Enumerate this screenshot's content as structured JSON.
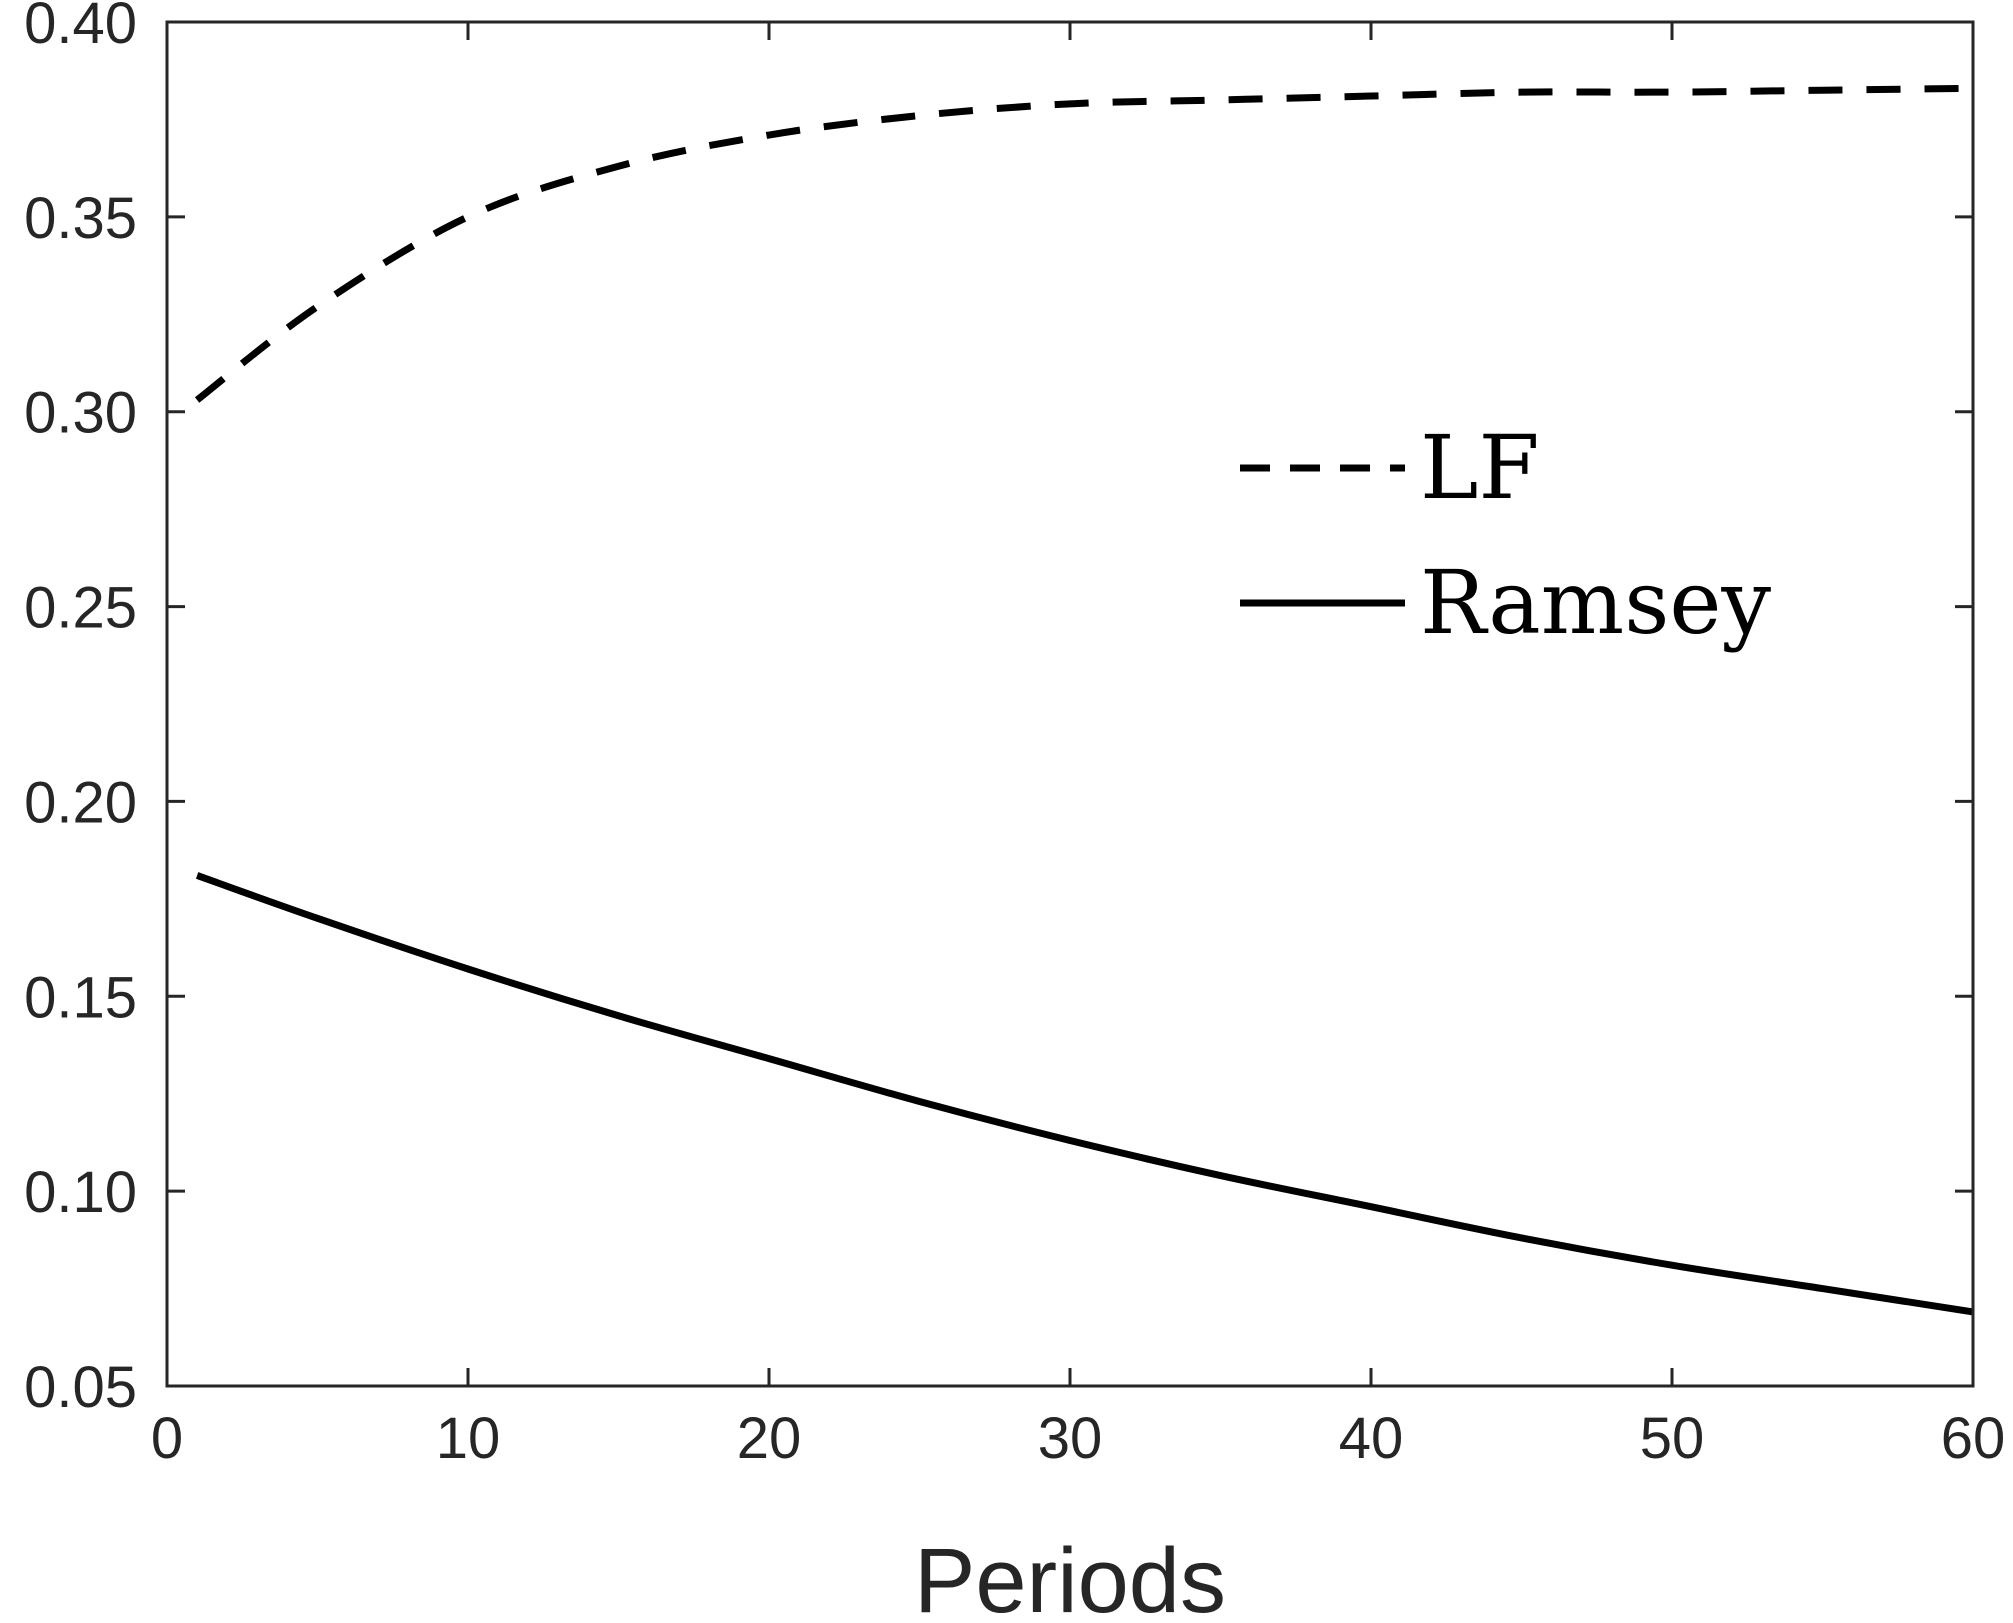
{
  "chart_data": {
    "type": "line",
    "title": "",
    "xlabel": "Periods",
    "ylabel": "",
    "xlim": [
      0,
      60
    ],
    "ylim": [
      0.05,
      0.4
    ],
    "xticks": [
      "0",
      "10",
      "20",
      "30",
      "40",
      "50",
      "60"
    ],
    "yticks": [
      "0.05",
      "0.10",
      "0.15",
      "0.20",
      "0.25",
      "0.30",
      "0.35",
      "0.40"
    ],
    "grid": false,
    "legend_position": "center-right",
    "x": [
      1,
      5,
      10,
      15,
      20,
      25,
      30,
      35,
      40,
      45,
      50,
      55,
      60
    ],
    "series": [
      {
        "name": "LF",
        "style": "dashed",
        "color": "#000000",
        "values": [
          0.303,
          0.327,
          0.35,
          0.363,
          0.371,
          0.376,
          0.379,
          0.38,
          0.381,
          0.382,
          0.382,
          0.3825,
          0.383
        ]
      },
      {
        "name": "Ramsey",
        "style": "solid",
        "color": "#000000",
        "values": [
          0.181,
          0.17,
          0.157,
          0.145,
          0.134,
          0.123,
          0.113,
          0.104,
          0.096,
          0.088,
          0.081,
          0.075,
          0.069
        ]
      }
    ]
  }
}
